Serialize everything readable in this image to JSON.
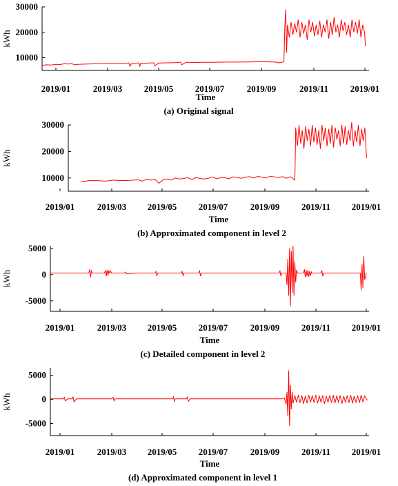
{
  "chart_data": [
    {
      "type": "line",
      "caption": "(a) Original signal",
      "xlabel": "Time",
      "ylabel": "kWh",
      "xticks": [
        "2019/01",
        "2019/03",
        "2019/05",
        "2019/07",
        "2019/09",
        "2019/11",
        "2019/01"
      ],
      "yticks": [
        10000,
        20000,
        30000
      ],
      "ylim": [
        5000,
        30000
      ],
      "xlim": [
        0,
        365
      ],
      "series": [
        {
          "color": "#ff0000",
          "x": [
            0,
            5,
            10,
            15,
            20,
            25,
            30,
            33,
            36,
            40,
            50,
            60,
            70,
            80,
            90,
            97,
            98,
            100,
            105,
            108,
            109,
            110,
            120,
            125,
            126,
            130,
            140,
            150,
            155,
            156,
            160,
            170,
            180,
            190,
            200,
            210,
            220,
            230,
            240,
            250,
            260,
            265,
            270,
            271,
            272,
            273,
            274,
            276,
            278,
            280,
            282,
            284,
            286,
            288,
            290,
            292,
            294,
            296,
            298,
            300,
            302,
            304,
            306,
            308,
            310,
            312,
            314,
            316,
            318,
            320,
            322,
            324,
            326,
            328,
            330,
            332,
            334,
            336,
            338,
            340,
            342,
            344,
            346,
            348,
            350,
            352,
            354,
            356,
            358,
            360,
            361
          ],
          "y": [
            7000,
            7200,
            7100,
            7400,
            7300,
            7600,
            7500,
            7700,
            7200,
            7400,
            7500,
            7600,
            7600,
            7700,
            7700,
            8000,
            6600,
            7700,
            7800,
            8000,
            6500,
            7800,
            7900,
            8000,
            6800,
            7900,
            8000,
            8050,
            8300,
            7200,
            8100,
            8100,
            8200,
            8200,
            8250,
            8300,
            8300,
            8350,
            8400,
            8400,
            8300,
            8000,
            8400,
            22000,
            29000,
            12000,
            23000,
            18000,
            24000,
            19000,
            23500,
            20000,
            25000,
            18000,
            24000,
            19500,
            23000,
            17000,
            25000,
            20000,
            24000,
            18500,
            23000,
            19000,
            24500,
            18000,
            23000,
            20000,
            25000,
            17500,
            24000,
            19000,
            26000,
            20000,
            23000,
            18000,
            25000,
            20500,
            24000,
            19000,
            23000,
            18000,
            25000,
            20000,
            24000,
            19500,
            25000,
            18000,
            23000,
            20000,
            14500
          ]
        }
      ]
    },
    {
      "type": "line",
      "caption": "(b) Approximated component in level 2",
      "xlabel": "Time",
      "ylabel": "kWh",
      "xticks": [
        "2019/01",
        "2019/03",
        "2019/05",
        "2019/07",
        "2019/09",
        "2019/11",
        "2019/01"
      ],
      "yticks": [
        10000,
        20000,
        30000
      ],
      "ylim": [
        5000,
        30000
      ],
      "xlim": [
        0,
        365
      ],
      "series": [
        {
          "color": "#ff0000",
          "x": [
            15,
            25,
            35,
            45,
            55,
            65,
            75,
            85,
            90,
            95,
            100,
            105,
            110,
            115,
            120,
            125,
            130,
            135,
            140,
            145,
            150,
            155,
            160,
            165,
            170,
            175,
            180,
            185,
            190,
            195,
            200,
            205,
            210,
            215,
            220,
            225,
            230,
            235,
            240,
            245,
            250,
            255,
            260,
            265,
            270,
            275,
            276,
            278,
            280,
            282,
            284,
            286,
            288,
            290,
            292,
            294,
            296,
            298,
            300,
            302,
            304,
            306,
            308,
            310,
            312,
            314,
            316,
            318,
            320,
            322,
            324,
            326,
            328,
            330,
            332,
            334,
            336,
            338,
            340,
            342,
            344,
            346,
            348,
            350,
            352,
            354,
            356,
            358,
            360,
            362
          ],
          "y": [
            8500,
            9000,
            9000,
            8800,
            9200,
            9000,
            9100,
            9300,
            8800,
            9500,
            9200,
            9500,
            8000,
            9300,
            9600,
            9200,
            10000,
            9600,
            9800,
            10100,
            9400,
            10200,
            9800,
            9600,
            9900,
            10400,
            9700,
            10100,
            10100,
            9700,
            10400,
            10200,
            9900,
            10300,
            10500,
            10000,
            10600,
            10300,
            10000,
            10700,
            10400,
            10200,
            10500,
            9900,
            10500,
            9200,
            29000,
            22000,
            30000,
            23000,
            28000,
            21000,
            29500,
            24000,
            28500,
            22000,
            30000,
            23500,
            29000,
            22500,
            28000,
            21000,
            30000,
            24000,
            29000,
            22000,
            28500,
            23000,
            30000,
            21500,
            29000,
            24500,
            28000,
            22000,
            30000,
            23000,
            29500,
            22500,
            28000,
            24000,
            31000,
            22000,
            28000,
            23500,
            30000,
            22000,
            28500,
            24000,
            29000,
            17500
          ]
        }
      ]
    },
    {
      "type": "line",
      "caption": "(c) Detailed component in level 2",
      "xlabel": "Time",
      "ylabel": "kWh",
      "xticks": [
        "2019/01",
        "2019/03",
        "2019/05",
        "2019/07",
        "2019/09",
        "2019/11",
        "2019/01"
      ],
      "yticks": [
        -5000,
        0,
        5000
      ],
      "ylim": [
        -7000,
        5500
      ],
      "xlim": [
        0,
        365
      ],
      "series": [
        {
          "color": "#ff0000",
          "x": [
            0,
            10,
            20,
            30,
            40,
            44,
            45,
            46,
            47,
            48,
            60,
            62,
            63,
            64,
            65,
            66,
            67,
            68,
            69,
            70,
            80,
            85,
            86,
            87,
            100,
            110,
            120,
            121,
            122,
            123,
            140,
            150,
            151,
            152,
            153,
            160,
            170,
            171,
            172,
            173,
            180,
            200,
            220,
            240,
            260,
            262,
            263,
            264,
            265,
            266,
            270,
            271,
            272,
            273,
            274,
            275,
            276,
            277,
            278,
            279,
            280,
            281,
            282,
            283,
            290,
            291,
            292,
            293,
            294,
            295,
            296,
            297,
            298,
            299,
            300,
            310,
            311,
            312,
            313,
            320,
            330,
            340,
            350,
            355,
            356,
            357,
            358,
            359,
            360,
            362
          ],
          "y": [
            300,
            300,
            300,
            300,
            300,
            300,
            1000,
            -500,
            700,
            300,
            300,
            300,
            800,
            -300,
            900,
            -200,
            700,
            300,
            700,
            300,
            300,
            300,
            500,
            200,
            300,
            300,
            300,
            600,
            -200,
            300,
            300,
            300,
            600,
            -200,
            300,
            300,
            300,
            700,
            -300,
            300,
            300,
            300,
            300,
            300,
            300,
            300,
            700,
            -300,
            300,
            300,
            300,
            -2000,
            3000,
            -4000,
            5000,
            -6000,
            4500,
            -3500,
            5500,
            -4000,
            2500,
            -1500,
            900,
            300,
            300,
            1000,
            -500,
            800,
            -300,
            900,
            -400,
            700,
            -200,
            500,
            300,
            300,
            800,
            -300,
            300,
            300,
            300,
            300,
            300,
            300,
            -3000,
            2000,
            -2500,
            3500,
            -1000,
            300
          ]
        }
      ]
    },
    {
      "type": "line",
      "caption": "(d) Approximated component in level 1",
      "xlabel": "Time",
      "ylabel": "kWh",
      "xticks": [
        "2019/01",
        "2019/03",
        "2019/05",
        "2019/07",
        "2019/09",
        "2019/11",
        "2019/01"
      ],
      "yticks": [
        -5000,
        0,
        5000
      ],
      "ylim": [
        -7500,
        6500
      ],
      "xlim": [
        0,
        365
      ],
      "series": [
        {
          "color": "#ff0000",
          "x": [
            0,
            10,
            15,
            16,
            17,
            20,
            25,
            26,
            27,
            30,
            40,
            50,
            60,
            70,
            72,
            73,
            74,
            80,
            90,
            100,
            110,
            120,
            130,
            140,
            141,
            142,
            143,
            150,
            156,
            157,
            158,
            160,
            170,
            180,
            190,
            200,
            210,
            220,
            230,
            240,
            250,
            260,
            265,
            268,
            270,
            271,
            272,
            273,
            274,
            275,
            276,
            277,
            278,
            280,
            282,
            284,
            286,
            288,
            290,
            292,
            294,
            296,
            298,
            300,
            302,
            304,
            306,
            308,
            310,
            312,
            314,
            316,
            318,
            320,
            322,
            324,
            326,
            328,
            330,
            332,
            334,
            336,
            338,
            340,
            342,
            344,
            346,
            348,
            350,
            352,
            354,
            356,
            358,
            360,
            363
          ],
          "y": [
            100,
            100,
            100,
            400,
            -300,
            100,
            100,
            500,
            -500,
            100,
            100,
            100,
            100,
            100,
            400,
            -300,
            100,
            100,
            100,
            100,
            100,
            100,
            100,
            100,
            500,
            -400,
            100,
            100,
            100,
            500,
            -400,
            100,
            100,
            100,
            100,
            100,
            100,
            100,
            100,
            100,
            100,
            100,
            100,
            300,
            -1000,
            1500,
            -3500,
            6000,
            -5500,
            3000,
            -2000,
            1500,
            -800,
            800,
            -600,
            900,
            -700,
            800,
            -900,
            700,
            -800,
            900,
            -600,
            800,
            -700,
            900,
            -800,
            700,
            -600,
            800,
            -900,
            700,
            -600,
            800,
            -700,
            900,
            -800,
            700,
            -600,
            800,
            -900,
            700,
            -600,
            800,
            -700,
            900,
            -800,
            700,
            -600,
            800,
            -700,
            900,
            -500,
            700,
            -200
          ]
        }
      ]
    }
  ]
}
